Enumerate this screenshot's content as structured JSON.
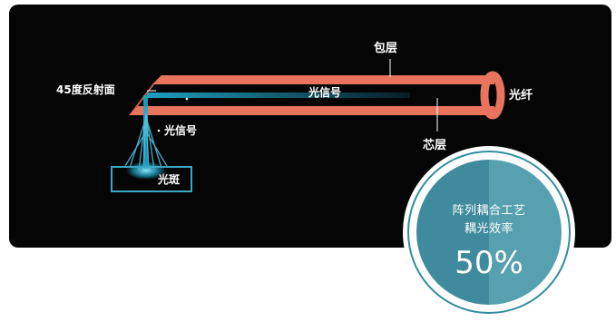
{
  "diagram": {
    "labels": {
      "cladding": "包层",
      "fiber": "光纤",
      "mirror": "45度反射面",
      "signal_in_fiber": "光信号",
      "signal_down": "光信号",
      "core": "芯层",
      "spot": "光斑"
    },
    "colors": {
      "panel": "#050505",
      "fiber": "#e8745e",
      "signal": "#1fa6c9",
      "label": "#ffffff",
      "spot_box": "#3aa8c4"
    }
  },
  "badge": {
    "line1": "阵列耦合工艺",
    "line2": "耦光效率",
    "value": "50%",
    "colors": {
      "left": "#3f8a9d",
      "right": "#56a0b0",
      "ring": "#2d8da0"
    }
  }
}
